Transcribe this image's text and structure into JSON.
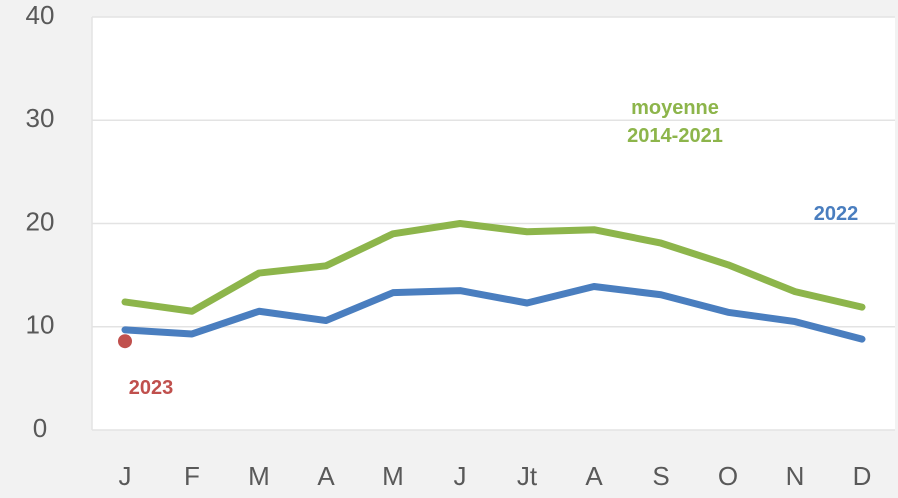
{
  "chart_data": {
    "type": "line",
    "categories": [
      "J",
      "F",
      "M",
      "A",
      "M",
      "J",
      "Jt",
      "A",
      "S",
      "O",
      "N",
      "D"
    ],
    "series": [
      {
        "name": "moyenne 2014-2021",
        "color": "#8db54b",
        "values": [
          12.4,
          11.5,
          15.2,
          15.9,
          19.0,
          20.0,
          19.2,
          19.4,
          18.1,
          16.0,
          13.4,
          11.9
        ]
      },
      {
        "name": "2022",
        "color": "#4a7ebf",
        "values": [
          9.7,
          9.3,
          11.5,
          10.6,
          13.3,
          13.5,
          12.3,
          13.9,
          13.1,
          11.4,
          10.5,
          8.8
        ]
      },
      {
        "name": "2023",
        "color": "#c0504d",
        "values": [
          8.6,
          null,
          null,
          null,
          null,
          null,
          null,
          null,
          null,
          null,
          null,
          null
        ]
      }
    ],
    "ylim": [
      0,
      40
    ],
    "yticks": [
      0,
      10,
      20,
      30,
      40
    ],
    "grid": true
  }
}
